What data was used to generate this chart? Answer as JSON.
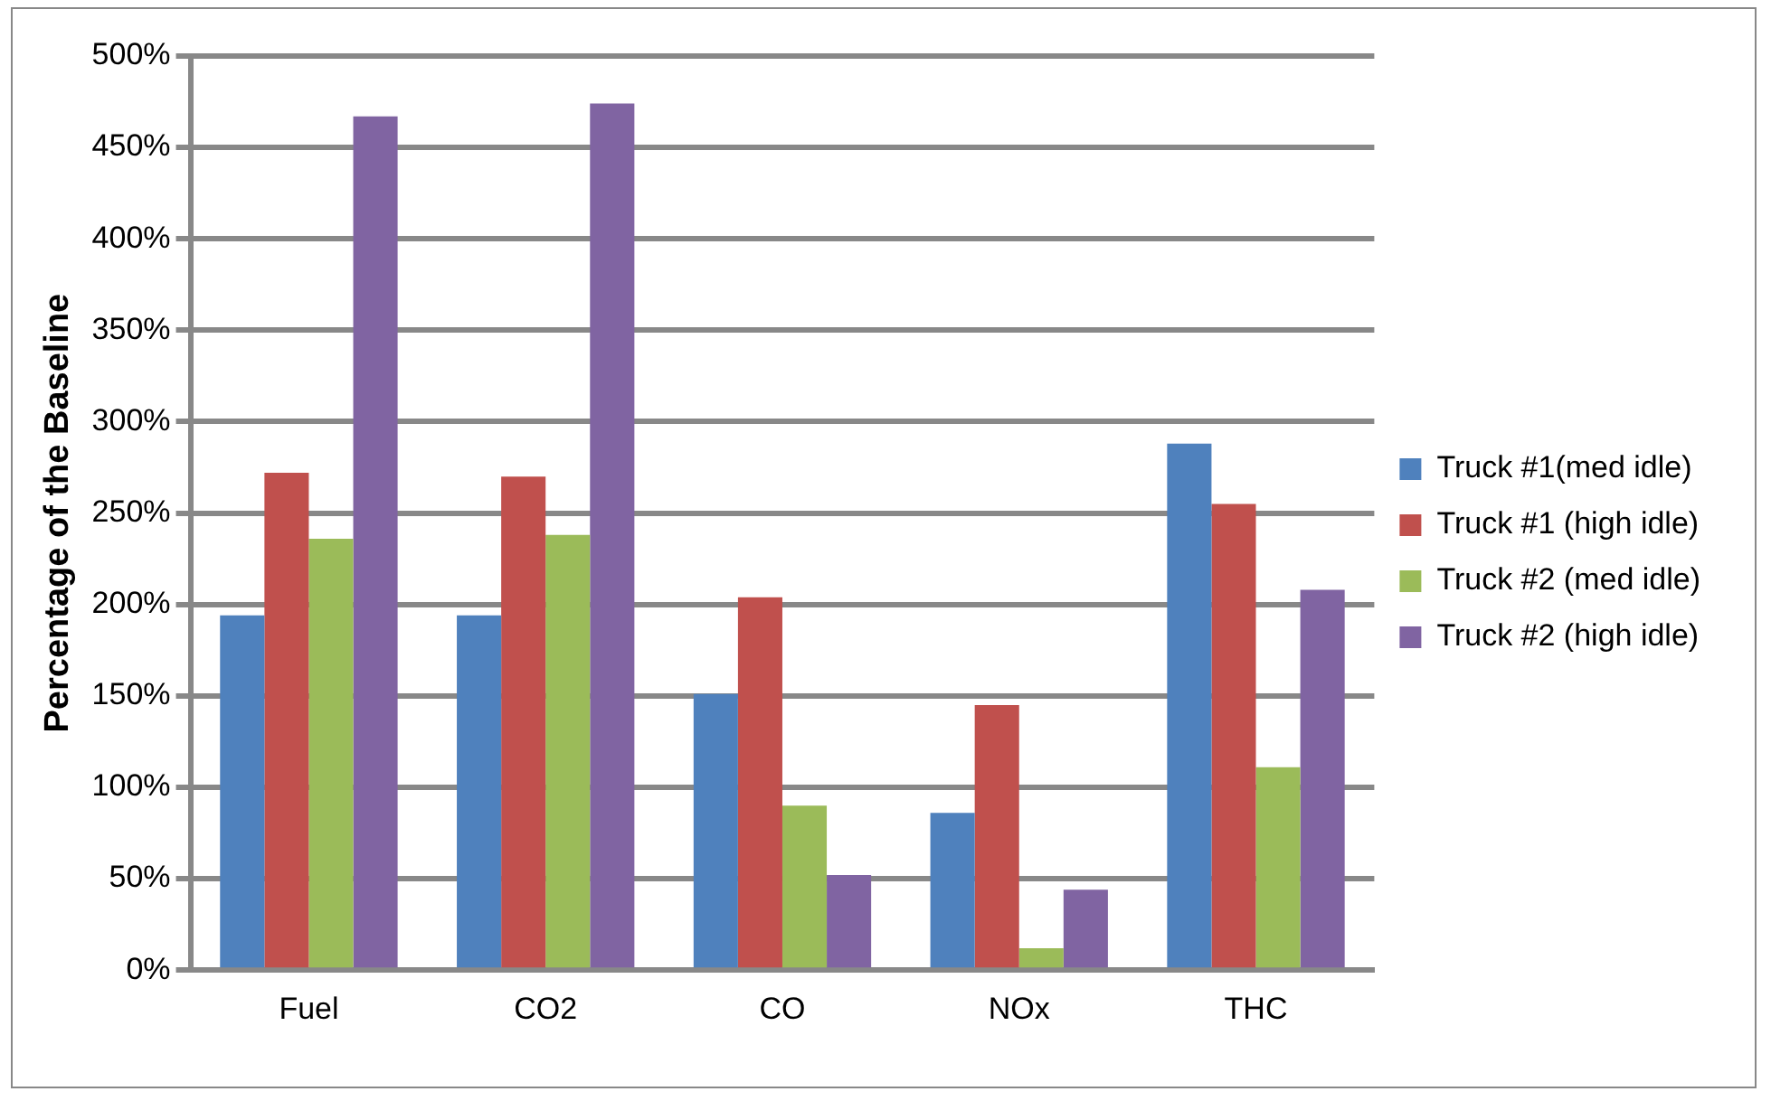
{
  "chart_data": {
    "type": "bar",
    "ylabel": "Percentage of the Baseline",
    "categories": [
      "Fuel",
      "CO2",
      "CO",
      "NOx",
      "THC"
    ],
    "series": [
      {
        "name": "Truck #1(med idle)",
        "color": "#4f81bd",
        "values": [
          194,
          194,
          151,
          86,
          288
        ]
      },
      {
        "name": "Truck #1 (high idle)",
        "color": "#c0504d",
        "values": [
          272,
          270,
          204,
          145,
          255
        ]
      },
      {
        "name": "Truck #2 (med idle)",
        "color": "#9bbb59",
        "values": [
          236,
          238,
          90,
          12,
          111
        ]
      },
      {
        "name": "Truck #2 (high idle)",
        "color": "#8064a2",
        "values": [
          467,
          474,
          52,
          44,
          208
        ]
      }
    ],
    "ylim": [
      0,
      500
    ],
    "yticks": [
      {
        "value": 0,
        "label": "0%"
      },
      {
        "value": 50,
        "label": "50%"
      },
      {
        "value": 100,
        "label": "100%"
      },
      {
        "value": 150,
        "label": "150%"
      },
      {
        "value": 200,
        "label": "200%"
      },
      {
        "value": 250,
        "label": "250%"
      },
      {
        "value": 300,
        "label": "300%"
      },
      {
        "value": 350,
        "label": "350%"
      },
      {
        "value": 400,
        "label": "400%"
      },
      {
        "value": 450,
        "label": "450%"
      },
      {
        "value": 500,
        "label": "500%"
      }
    ],
    "grid": "y",
    "legend": "right"
  }
}
